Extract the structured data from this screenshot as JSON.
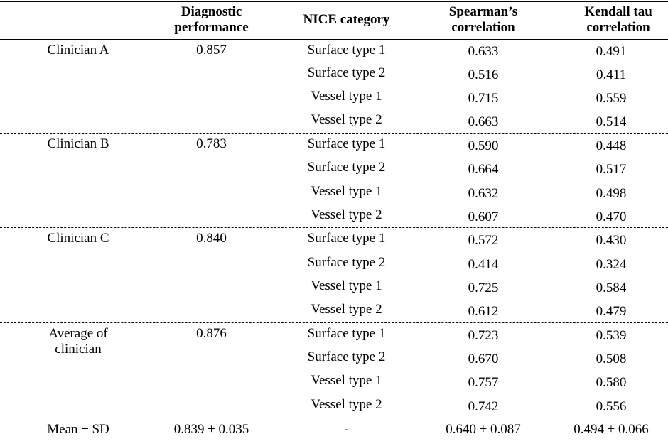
{
  "headers": {
    "diagnostic": "Diagnostic performance",
    "nice": "NICE category",
    "spearman": "Spearman’s correlation",
    "kendall": "Kendall tau correlation"
  },
  "groups": [
    {
      "clinician": "Clinician A",
      "diagnostic": "0.857",
      "rows": [
        {
          "category": "Surface type 1",
          "spearman": "0.633",
          "kendall": "0.491"
        },
        {
          "category": "Surface type 2",
          "spearman": "0.516",
          "kendall": "0.411"
        },
        {
          "category": "Vessel type 1",
          "spearman": "0.715",
          "kendall": "0.559"
        },
        {
          "category": "Vessel type 2",
          "spearman": "0.663",
          "kendall": "0.514"
        }
      ]
    },
    {
      "clinician": "Clinician B",
      "diagnostic": "0.783",
      "rows": [
        {
          "category": "Surface type 1",
          "spearman": "0.590",
          "kendall": "0.448"
        },
        {
          "category": "Surface type 2",
          "spearman": "0.664",
          "kendall": "0.517"
        },
        {
          "category": "Vessel type 1",
          "spearman": "0.632",
          "kendall": "0.498"
        },
        {
          "category": "Vessel type 2",
          "spearman": "0.607",
          "kendall": "0.470"
        }
      ]
    },
    {
      "clinician": "Clinician C",
      "diagnostic": "0.840",
      "rows": [
        {
          "category": "Surface type 1",
          "spearman": "0.572",
          "kendall": "0.430"
        },
        {
          "category": "Surface type 2",
          "spearman": "0.414",
          "kendall": "0.324"
        },
        {
          "category": "Vessel type 1",
          "spearman": "0.725",
          "kendall": "0.584"
        },
        {
          "category": "Vessel type 2",
          "spearman": "0.612",
          "kendall": "0.479"
        }
      ]
    },
    {
      "clinician": "Average of clinician",
      "diagnostic": "0.876",
      "rows": [
        {
          "category": "Surface type 1",
          "spearman": "0.723",
          "kendall": "0.539"
        },
        {
          "category": "Surface type 2",
          "spearman": "0.670",
          "kendall": "0.508"
        },
        {
          "category": "Vessel type 1",
          "spearman": "0.757",
          "kendall": "0.580"
        },
        {
          "category": "Vessel type 2",
          "spearman": "0.742",
          "kendall": "0.556"
        }
      ]
    }
  ],
  "summary": {
    "label": "Mean ± SD",
    "diagnostic": "0.839 ± 0.035",
    "nice": "-",
    "spearman": "0.640 ± 0.087",
    "kendall": "0.494 ± 0.066"
  }
}
